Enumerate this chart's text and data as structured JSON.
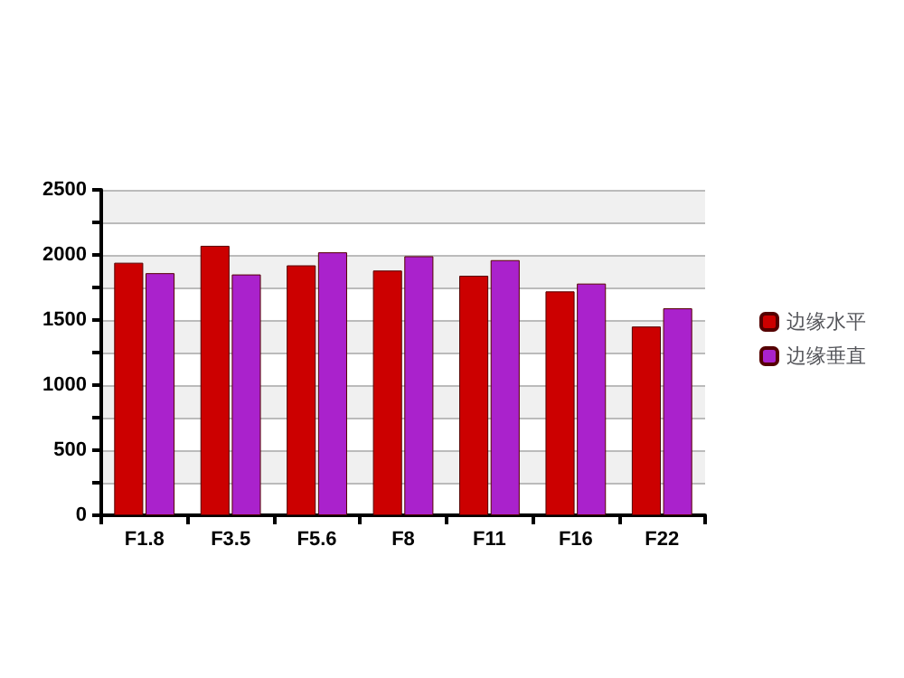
{
  "chart_data": {
    "type": "bar",
    "categories": [
      "F1.8",
      "F3.5",
      "F5.6",
      "F8",
      "F11",
      "F16",
      "F22"
    ],
    "series": [
      {
        "name": "边缘水平",
        "color": "#cc0000",
        "values": [
          1940,
          2070,
          1920,
          1880,
          1840,
          1720,
          1450
        ]
      },
      {
        "name": "边缘垂直",
        "color": "#aa22cc",
        "values": [
          1860,
          1850,
          2020,
          1990,
          1960,
          1780,
          1590
        ]
      }
    ],
    "ylim": [
      0,
      2500
    ],
    "yticks": [
      0,
      {
        "value": 250,
        "label": null
      },
      500,
      {
        "value": 750,
        "label": null
      },
      1000,
      {
        "value": 1250,
        "label": null
      },
      1500,
      {
        "value": 1750,
        "label": null
      },
      2000,
      {
        "value": 2250,
        "label": null
      },
      2500
    ],
    "grid": "y",
    "legend": "right"
  }
}
